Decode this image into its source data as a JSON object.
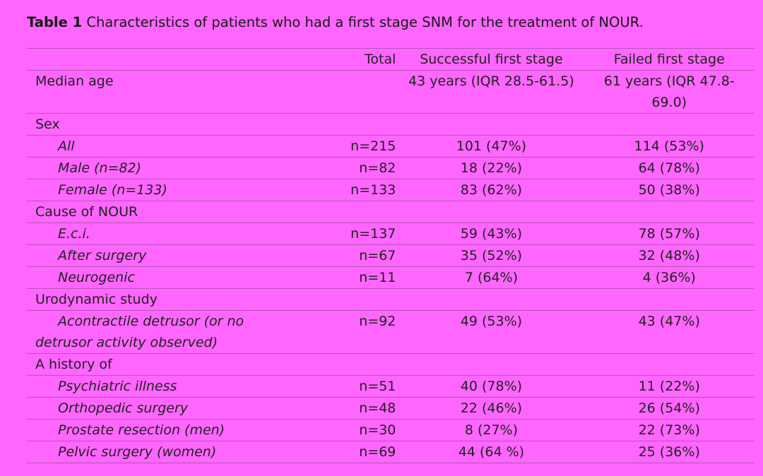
{
  "caption": {
    "label": "Table 1",
    "text": "Characteristics of patients who had a first stage SNM for the treatment of NOUR."
  },
  "headers": [
    "",
    "Total",
    "Successful first stage",
    "Failed first stage"
  ],
  "rows": [
    {
      "label": "Median age",
      "total": "",
      "success": "43 years (IQR 28.5-61.5)",
      "failed": "61 years (IQR 47.8-69.0)",
      "sub": false
    },
    {
      "label": "Sex",
      "total": "",
      "success": "",
      "failed": "",
      "sub": false
    },
    {
      "label": "All",
      "total": "n=215",
      "success": "101 (47%)",
      "failed": "114 (53%)",
      "sub": true
    },
    {
      "label": "Male (n=82)",
      "total": "n=82",
      "success": "18 (22%)",
      "failed": "64 (78%)",
      "sub": true
    },
    {
      "label": "Female (n=133)",
      "total": "n=133",
      "success": "83 (62%)",
      "failed": "50 (38%)",
      "sub": true
    },
    {
      "label": "Cause of NOUR",
      "total": "",
      "success": "",
      "failed": "",
      "sub": false
    },
    {
      "label": "E.c.i.",
      "total": "n=137",
      "success": "59 (43%)",
      "failed": "78 (57%)",
      "sub": true
    },
    {
      "label": "After surgery",
      "total": "n=67",
      "success": "35 (52%)",
      "failed": "32 (48%)",
      "sub": true
    },
    {
      "label": "Neurogenic",
      "total": "n=11",
      "success": "7 (64%)",
      "failed": "4 (36%)",
      "sub": true
    },
    {
      "label": "Urodynamic study",
      "total": "",
      "success": "",
      "failed": "",
      "sub": false
    },
    {
      "label": "Acontractile detrusor (or no detrusor activity observed)",
      "total": "n=92",
      "success": "49 (53%)",
      "failed": "43 (47%)",
      "sub": true
    },
    {
      "label": "A history of",
      "total": "",
      "success": "",
      "failed": "",
      "sub": false
    },
    {
      "label": "Psychiatric illness",
      "total": "n=51",
      "success": "40 (78%)",
      "failed": "11 (22%)",
      "sub": true
    },
    {
      "label": "Orthopedic surgery",
      "total": "n=48",
      "success": "22 (46%)",
      "failed": "26 (54%)",
      "sub": true
    },
    {
      "label": "Prostate resection (men)",
      "total": "n=30",
      "success": "8 (27%)",
      "failed": "22 (73%)",
      "sub": true
    },
    {
      "label": "Pelvic surgery (women)",
      "total": "n=69",
      "success": "44 (64 %)",
      "failed": "25 (36%)",
      "sub": true
    }
  ]
}
